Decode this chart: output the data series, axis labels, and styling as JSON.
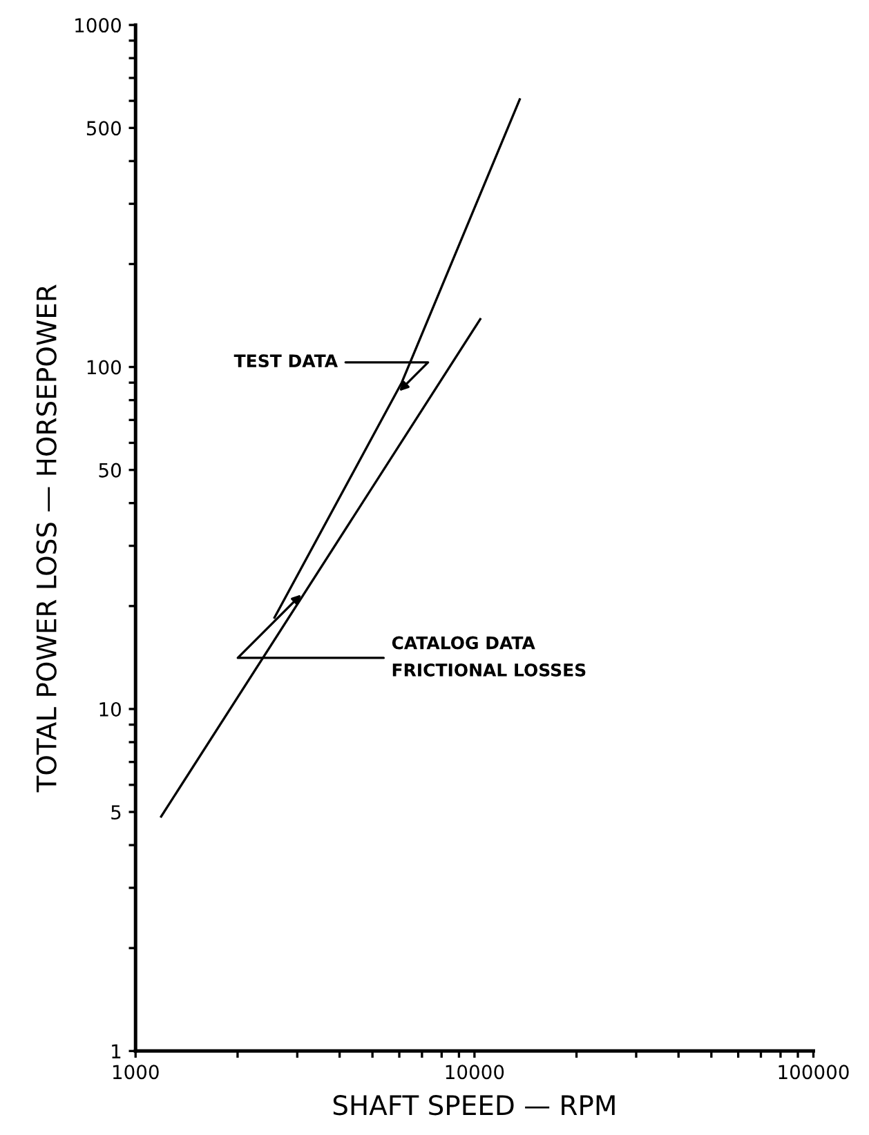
{
  "chart_data": {
    "type": "line",
    "xlabel": "SHAFT SPEED — RPM",
    "ylabel": "TOTAL POWER LOSS — HORSEPOWER",
    "log": "xy",
    "xlim": [
      1000,
      100000
    ],
    "ylim": [
      1,
      1000
    ],
    "xticks": [
      1000,
      {
        "value": 2000,
        "label": null
      },
      {
        "value": 3000,
        "label": null
      },
      {
        "value": 4000,
        "label": null
      },
      {
        "value": 5000,
        "label": null
      },
      {
        "value": 6000,
        "label": null
      },
      {
        "value": 7000,
        "label": null
      },
      {
        "value": 8000,
        "label": null
      },
      {
        "value": 9000,
        "label": null
      },
      10000,
      {
        "value": 20000,
        "label": null
      },
      {
        "value": 30000,
        "label": null
      },
      {
        "value": 40000,
        "label": null
      },
      {
        "value": 50000,
        "label": null
      },
      {
        "value": 60000,
        "label": null
      },
      {
        "value": 70000,
        "label": null
      },
      {
        "value": 80000,
        "label": null
      },
      {
        "value": 90000,
        "label": null
      },
      100000
    ],
    "yticks": [
      1,
      {
        "value": 2,
        "label": null
      },
      {
        "value": 3,
        "label": null
      },
      {
        "value": 4,
        "label": null
      },
      5,
      {
        "value": 6,
        "label": null
      },
      {
        "value": 7,
        "label": null
      },
      {
        "value": 8,
        "label": null
      },
      {
        "value": 9,
        "label": null
      },
      10,
      {
        "value": 20,
        "label": null
      },
      {
        "value": 30,
        "label": null
      },
      {
        "value": 40,
        "label": null
      },
      50,
      {
        "value": 60,
        "label": null
      },
      {
        "value": 70,
        "label": null
      },
      {
        "value": 80,
        "label": null
      },
      {
        "value": 90,
        "label": null
      },
      100,
      {
        "value": 200,
        "label": null
      },
      {
        "value": 300,
        "label": null
      },
      {
        "value": 400,
        "label": null
      },
      500,
      {
        "value": 600,
        "label": null
      },
      {
        "value": 700,
        "label": null
      },
      {
        "value": 800,
        "label": null
      },
      {
        "value": 900,
        "label": null
      },
      1000
    ],
    "grid": false,
    "legend": false,
    "marker": "none",
    "line_style": "solid",
    "series": [
      {
        "color": "#000000",
        "x": [
          2570,
          6100,
          13600
        ],
        "values": [
          18.5,
          90,
          606
        ]
      },
      {
        "color": "#000000",
        "x": [
          1190,
          10400
        ],
        "values": [
          4.85,
          138
        ]
      }
    ],
    "annotations": [
      {
        "text": "TEST DATA",
        "x": 6000,
        "y": 85
      },
      {
        "text": "CATALOG DATA\nFRICTIONAL LOSSES",
        "x": 3080,
        "y": 21.6
      }
    ]
  }
}
